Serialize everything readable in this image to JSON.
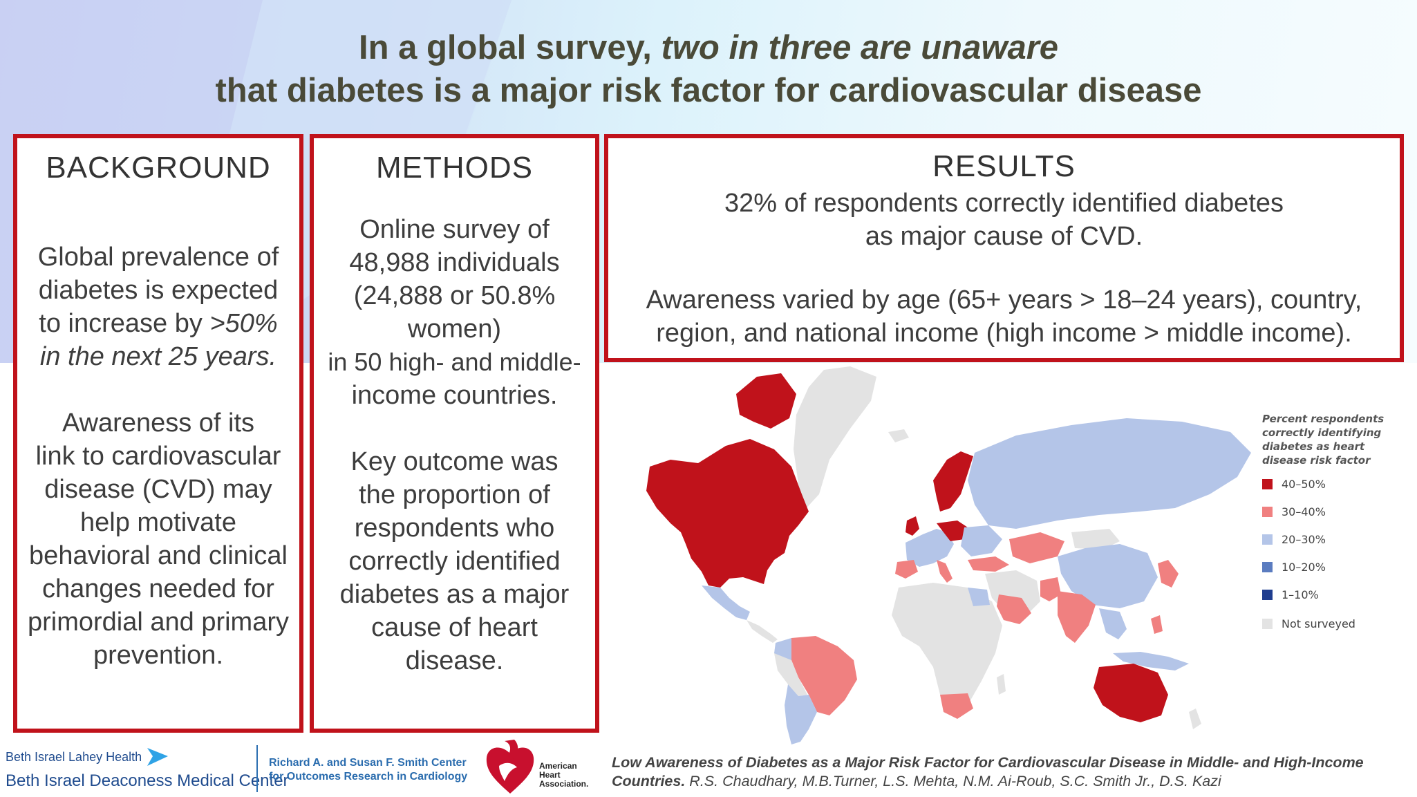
{
  "title": {
    "line1_plain": "In a global survey, ",
    "line1_italic": "two in three are unaware",
    "line2": "that diabetes is a major risk factor for cardiovascular disease"
  },
  "background": {
    "heading": "BACKGROUND",
    "p1_lines": [
      "Global prevalence of",
      "diabetes is expected",
      "to increase by "
    ],
    "p1_italic_a": ">50%",
    "p1_italic_b": "in the next 25 years.",
    "p2_lines": [
      "Awareness of its",
      "link to cardiovascular",
      "disease (CVD) may",
      "help motivate",
      "behavioral and clinical",
      "changes needed for",
      "primordial and primary",
      "prevention."
    ]
  },
  "methods": {
    "heading": "METHODS",
    "p1_lines": [
      "Online survey of",
      "48,988 individuals",
      "(24,888 or 50.8%",
      "women)",
      "in 50 high- and middle-",
      "income countries."
    ],
    "p2_lines": [
      "Key outcome was",
      "the proportion of",
      "respondents who",
      "correctly identified",
      "diabetes as a major",
      "cause of heart",
      "disease."
    ]
  },
  "results": {
    "heading": "RESULTS",
    "p1_lines": [
      "32% of respondents correctly identified diabetes",
      "as major cause of CVD."
    ],
    "p2_lines": [
      "Awareness varied by age (65+ years > 18–24 years), country,",
      "region, and national income (high income > middle income)."
    ]
  },
  "legend": {
    "title_lines": [
      "Percent respondents",
      "correctly identifying",
      "diabetes as heart",
      "disease risk factor"
    ],
    "items": [
      {
        "label": "40–50%",
        "color": "#c0121b"
      },
      {
        "label": "30–40%",
        "color": "#f08080"
      },
      {
        "label": "20–30%",
        "color": "#b4c5e8"
      },
      {
        "label": "10–20%",
        "color": "#5b7cc0"
      },
      {
        "label": "1–10%",
        "color": "#1f3d8f"
      },
      {
        "label": "Not surveyed",
        "color": "#e3e3e3"
      }
    ]
  },
  "citation": {
    "title": "Low Awareness of Diabetes as a Major Risk Factor for Cardiovascular Disease in Middle- and High-Income Countries.",
    "authors": " R.S. Chaudhary, M.B.Turner, L.S. Mehta, N.M. Ai-Roub, S.C. Smith Jr., D.S. Kazi"
  },
  "logos": {
    "bilh_small": "Beth Israel Lahey Health",
    "bilh_big": "Beth Israel Deaconess Medical Center",
    "smith_line1": "Richard A. and Susan F. Smith Center",
    "smith_line2": "for Outcomes Research in Cardiology",
    "aha_lines": [
      "American",
      "Heart",
      "Association."
    ]
  },
  "colors": {
    "frame_red": "#c0121b",
    "title_text": "#4a4a38"
  }
}
